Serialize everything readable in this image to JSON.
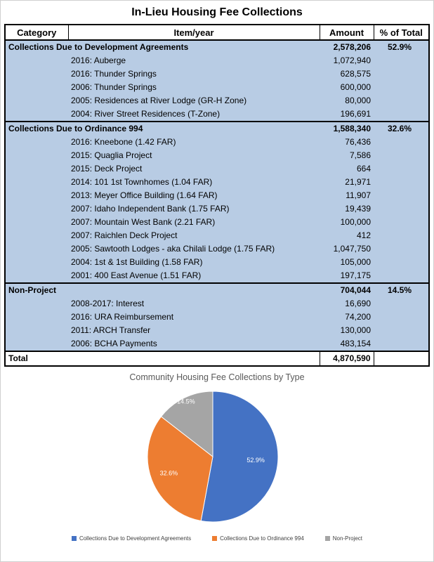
{
  "chart_data": [
    {
      "type": "table",
      "title": "In-Lieu Housing Fee Collections",
      "headers": [
        "Category",
        "Item/year",
        "Amount",
        "% of Total"
      ],
      "row_fill": "#b8cce4",
      "sections": [
        {
          "category": "Collections Due to Development Agreements",
          "amount": "2,578,206",
          "percent": "52.9%",
          "items": [
            {
              "label": "2016: Auberge",
              "amount": "1,072,940"
            },
            {
              "label": "2016: Thunder Springs",
              "amount": "628,575"
            },
            {
              "label": "2006: Thunder Springs",
              "amount": "600,000"
            },
            {
              "label": "2005: Residences at River Lodge (GR-H Zone)",
              "amount": "80,000"
            },
            {
              "label": "2004: River Street Residences (T-Zone)",
              "amount": "196,691"
            }
          ]
        },
        {
          "category": "Collections Due to Ordinance 994",
          "amount": "1,588,340",
          "percent": "32.6%",
          "items": [
            {
              "label": "2016: Kneebone (1.42 FAR)",
              "amount": "76,436"
            },
            {
              "label": "2015: Quaglia Project",
              "amount": "7,586"
            },
            {
              "label": "2015: Deck Project",
              "amount": "664"
            },
            {
              "label": "2014: 101 1st Townhomes (1.04 FAR)",
              "amount": "21,971"
            },
            {
              "label": "2013: Meyer Office Building (1.64 FAR)",
              "amount": "11,907"
            },
            {
              "label": "2007: Idaho Independent Bank (1.75 FAR)",
              "amount": "19,439"
            },
            {
              "label": "2007: Mountain West Bank (2.21 FAR)",
              "amount": "100,000"
            },
            {
              "label": "2007: Raichlen Deck Project",
              "amount": "412"
            },
            {
              "label": "2005: Sawtooth Lodges - aka Chilali Lodge (1.75 FAR)",
              "amount": "1,047,750"
            },
            {
              "label": "2004: 1st & 1st Building (1.58 FAR)",
              "amount": "105,000"
            },
            {
              "label": "2001: 400 East Avenue (1.51 FAR)",
              "amount": "197,175"
            }
          ]
        },
        {
          "category": "Non-Project",
          "amount": "704,044",
          "percent": "14.5%",
          "items": [
            {
              "label": "2008-2017: Interest",
              "amount": "16,690"
            },
            {
              "label": "2016: URA Reimbursement",
              "amount": "74,200"
            },
            {
              "label": "2011: ARCH Transfer",
              "amount": "130,000"
            },
            {
              "label": "2006: BCHA Payments",
              "amount": "483,154"
            }
          ]
        }
      ],
      "total": {
        "label": "Total",
        "amount": "4,870,590"
      }
    },
    {
      "type": "pie",
      "title": "Community Housing Fee Collections by Type",
      "labels": [
        "Collections Due to Development Agreements",
        "Collections Due to Ordinance 994",
        "Non-Project"
      ],
      "values": [
        52.9,
        32.6,
        14.5
      ],
      "slice_labels": [
        "52.9%",
        "32.6%",
        "14.5%"
      ],
      "colors": [
        "#4472c4",
        "#ed7d31",
        "#a5a5a5"
      ],
      "label_color": "#ffffff",
      "legend_position": "bottom"
    }
  ]
}
